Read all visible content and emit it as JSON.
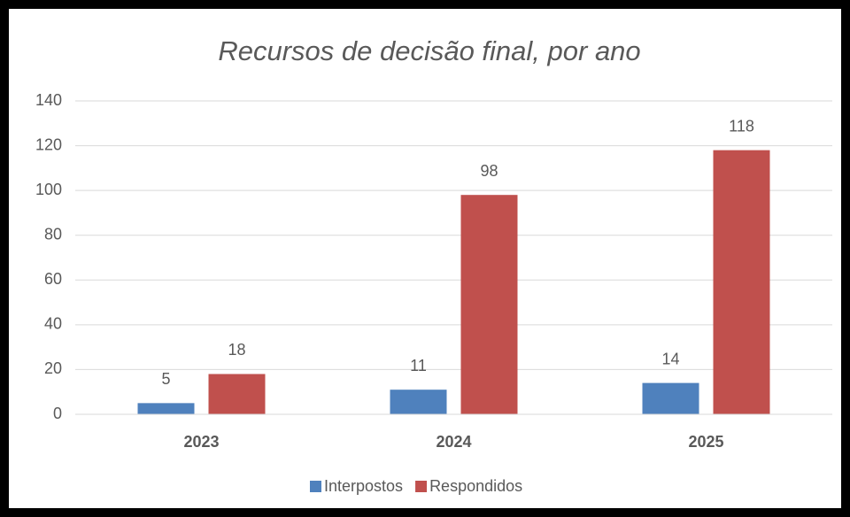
{
  "chart_data": {
    "type": "bar",
    "title": "Recursos de decisão final, por ano",
    "categories": [
      "2023",
      "2024",
      "2025"
    ],
    "series": [
      {
        "name": "Interpostos",
        "color": "#4f81bd",
        "values": [
          5,
          11,
          14
        ]
      },
      {
        "name": "Respondidos",
        "color": "#c0504d",
        "values": [
          18,
          98,
          118
        ]
      }
    ],
    "ylim": [
      0,
      140
    ],
    "yticks": [
      0,
      20,
      40,
      60,
      80,
      100,
      120,
      140
    ],
    "grid": true,
    "legend": "bottom"
  }
}
